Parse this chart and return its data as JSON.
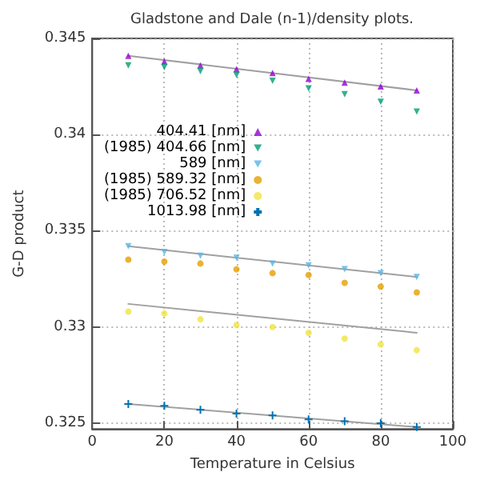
{
  "chart_data": {
    "type": "scatter",
    "title": "Gladstone and Dale (n-1)/density plots.",
    "xlabel": "Temperature in Celsius",
    "ylabel": "G-D product",
    "x": [
      10,
      20,
      30,
      40,
      50,
      60,
      70,
      80,
      90
    ],
    "series": [
      {
        "name": "404.41 [nm]",
        "color": "#9400d3",
        "marker": "triangle",
        "values": [
          0.3441,
          0.3438,
          0.3436,
          0.3434,
          0.3432,
          0.3429,
          0.3427,
          0.3425,
          0.3423
        ]
      },
      {
        "name": "(1985) 404.66 [nm]",
        "color": "#009e73",
        "marker": "triangle-down",
        "values": [
          0.3436,
          0.3435,
          0.3433,
          0.3431,
          0.3428,
          0.3424,
          0.3421,
          0.3417,
          0.3412
        ]
      },
      {
        "name": "589 [nm]",
        "color": "#56b4e9",
        "marker": "triangle-down",
        "values": [
          0.3342,
          0.3339,
          0.3337,
          0.3336,
          0.3333,
          0.3332,
          0.333,
          0.3328,
          0.3326
        ]
      },
      {
        "name": "(1985) 589.32 [nm]",
        "color": "#e69f00",
        "marker": "circle",
        "values": [
          0.3335,
          0.3334,
          0.3333,
          0.333,
          0.3328,
          0.3327,
          0.3323,
          0.3321,
          0.3318
        ]
      },
      {
        "name": "(1985) 706.52 [nm]",
        "color": "#f0e442",
        "marker": "circle",
        "values": [
          0.3308,
          0.3307,
          0.3304,
          0.3301,
          0.33,
          0.3297,
          0.3294,
          0.3291,
          0.3288
        ]
      },
      {
        "name": "1013.98 [nm]",
        "color": "#0072b2",
        "marker": "cross",
        "values": [
          0.326,
          0.3259,
          0.3257,
          0.3255,
          0.3254,
          0.3252,
          0.3251,
          0.325,
          0.3248
        ]
      },
      {
        "type": "line",
        "color": "#a0a0a0",
        "marker": "none",
        "line_style": "solid",
        "values": [
          0.3441,
          null,
          null,
          null,
          null,
          null,
          null,
          null,
          0.3423
        ]
      },
      {
        "type": "line",
        "color": "#a0a0a0",
        "marker": "none",
        "line_style": "solid",
        "values": [
          0.3342,
          null,
          null,
          null,
          null,
          null,
          null,
          null,
          0.3326
        ]
      },
      {
        "type": "line",
        "color": "#a0a0a0",
        "marker": "none",
        "line_style": "solid",
        "values": [
          0.3312,
          null,
          null,
          null,
          null,
          null,
          null,
          null,
          0.3297
        ]
      },
      {
        "type": "line",
        "color": "#a0a0a0",
        "marker": "none",
        "line_style": "solid",
        "values": [
          0.326,
          null,
          null,
          null,
          null,
          null,
          null,
          null,
          0.3248
        ]
      }
    ],
    "xlim": [
      0,
      100
    ],
    "xticks": [
      0,
      20,
      40,
      60,
      80,
      100
    ],
    "ylim": [
      0.3247,
      0.345
    ],
    "yticks": [
      0.325,
      0.33,
      0.335,
      0.34,
      0.345
    ],
    "grid": true,
    "legend": "top left"
  }
}
